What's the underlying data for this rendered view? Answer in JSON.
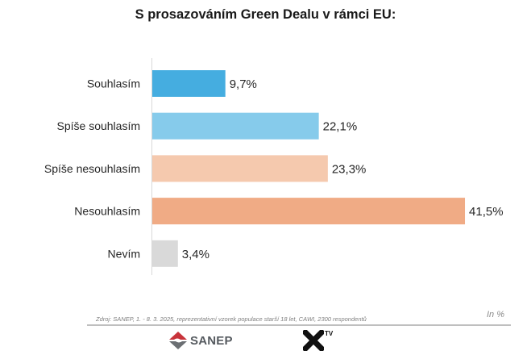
{
  "chart_data": {
    "type": "bar",
    "orientation": "horizontal",
    "title": "S prosazováním Green Dealu v rámci EU:",
    "categories": [
      "Souhlasím",
      "Spíše souhlasím",
      "Spíše nesouhlasím",
      "Nesouhlasím",
      "Nevím"
    ],
    "values": [
      9.7,
      22.1,
      23.3,
      41.5,
      3.4
    ],
    "value_labels": [
      "9,7%",
      "22,1%",
      "23,3%",
      "41,5%",
      "3,4%"
    ],
    "colors": [
      "#45ADE0",
      "#86CBEB",
      "#F5C9AE",
      "#F0AB85",
      "#D9D9D9"
    ],
    "xlabel": "",
    "ylabel": "",
    "xlim": [
      0,
      45
    ],
    "grid": false,
    "legend": "none",
    "unit_note": "In %"
  },
  "footer": {
    "source": "Zdroj: SANEP, 1. - 8. 3. 2025, reprezentativní vzorek populace starší 18 let, CAWI, 2300 respondentů",
    "unit": "In %",
    "logos": {
      "sanep": "SANEP",
      "xtv_superscript": "TV"
    }
  }
}
